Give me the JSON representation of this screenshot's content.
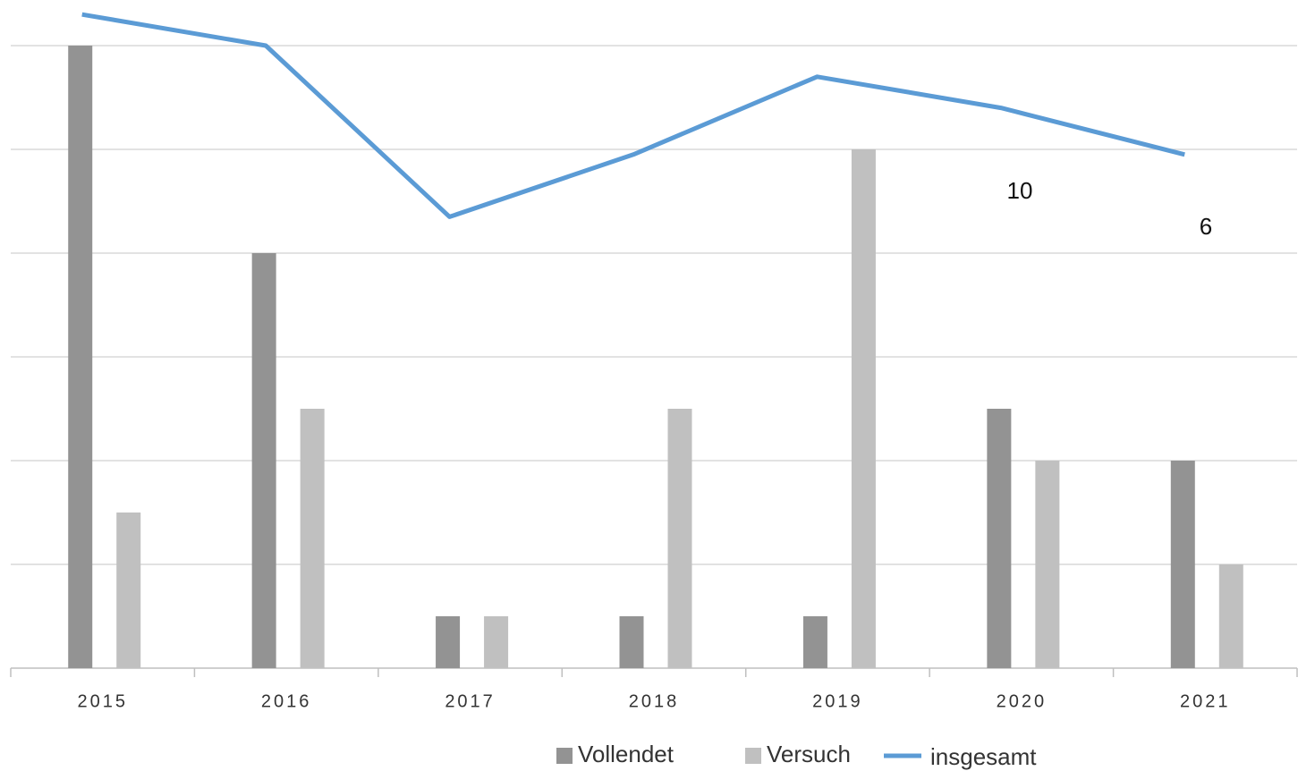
{
  "chart_data": {
    "type": "bar",
    "categories": [
      "2015",
      "2016",
      "2017",
      "2018",
      "2019",
      "2020",
      "2021"
    ],
    "series": [
      {
        "name": "Vollendet",
        "color": "#939393",
        "values": [
          12,
          8,
          1,
          1,
          1,
          5,
          4
        ]
      },
      {
        "name": "Versuch",
        "color": "#c0c0c0",
        "values": [
          3,
          5,
          1,
          5,
          10,
          4,
          2
        ]
      },
      {
        "name": "insgesamt",
        "color": "#5b9bd5",
        "type": "line",
        "axis": "y2",
        "values": [
          15,
          13,
          2,
          6,
          11,
          9,
          6
        ]
      }
    ],
    "ylim": [
      0,
      12
    ],
    "yticks": [
      0,
      2,
      4,
      6,
      8,
      10,
      12
    ],
    "y2lim": [
      -27,
      13
    ],
    "grid": true,
    "annotations": [
      "10",
      "6"
    ],
    "legend": "bottom"
  }
}
